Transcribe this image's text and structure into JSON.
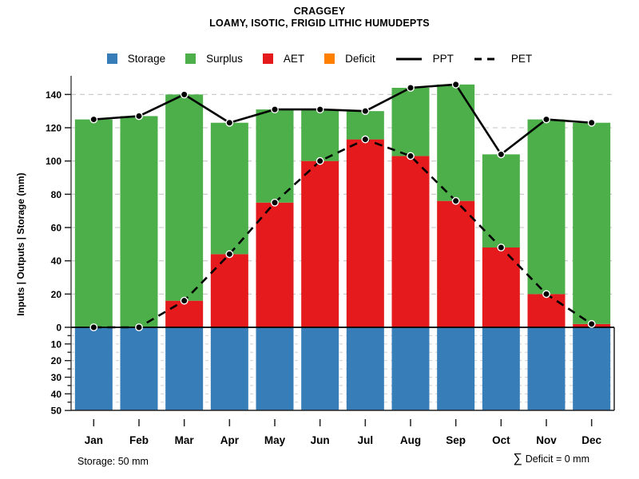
{
  "header": {
    "title": "CRAGGEY",
    "subtitle": "LOAMY, ISOTIC, FRIGID LITHIC HUMUDEPTS"
  },
  "legend": {
    "items": [
      {
        "label": "Storage",
        "kind": "swatch",
        "color": "#377eb8"
      },
      {
        "label": "Surplus",
        "kind": "swatch",
        "color": "#4daf4a"
      },
      {
        "label": "AET",
        "kind": "swatch",
        "color": "#e41a1c"
      },
      {
        "label": "Deficit",
        "kind": "swatch",
        "color": "#ff7f00"
      },
      {
        "label": "PPT",
        "kind": "line",
        "style": "solid",
        "color": "#000000"
      },
      {
        "label": "PET",
        "kind": "line",
        "style": "dashed",
        "color": "#000000"
      }
    ]
  },
  "footer": {
    "left": "Storage: 50 mm",
    "sigma": "∑",
    "right": "Deficit = 0 mm"
  },
  "chart_data": {
    "type": "bar",
    "title": "CRAGGEY",
    "subtitle": "LOAMY, ISOTIC, FRIGID LITHIC HUMUDEPTS",
    "ylabel": "Inputs | Outputs | Storage   (mm)",
    "categories": [
      "Jan",
      "Feb",
      "Mar",
      "Apr",
      "May",
      "Jun",
      "Jul",
      "Aug",
      "Sep",
      "Oct",
      "Nov",
      "Dec"
    ],
    "upper_axis": {
      "tick_interval": 20,
      "ticks": [
        0,
        20,
        40,
        60,
        80,
        100,
        120,
        140
      ],
      "max": 150,
      "grid": "dashed"
    },
    "lower_axis": {
      "tick_interval": 10,
      "minor_interval": 5,
      "ticks": [
        10,
        20,
        30,
        40,
        50
      ],
      "max": 50,
      "direction": "down",
      "grid": "dashed"
    },
    "series": [
      {
        "name": "Storage",
        "type": "bar-below-axis",
        "color": "#377eb8",
        "values": [
          50,
          50,
          50,
          50,
          50,
          50,
          50,
          50,
          50,
          50,
          50,
          50
        ]
      },
      {
        "name": "AET",
        "type": "bar",
        "color": "#e41a1c",
        "values": [
          0,
          0,
          16,
          44,
          75,
          100,
          113,
          103,
          76,
          48,
          20,
          2
        ]
      },
      {
        "name": "Surplus",
        "type": "bar",
        "stacked_on": "AET",
        "color": "#4daf4a",
        "values": [
          125,
          127,
          124,
          79,
          56,
          31,
          17,
          41,
          70,
          56,
          105,
          121
        ]
      },
      {
        "name": "Deficit",
        "type": "bar",
        "color": "#ff7f00",
        "values": [
          0,
          0,
          0,
          0,
          0,
          0,
          0,
          0,
          0,
          0,
          0,
          0
        ]
      },
      {
        "name": "PPT",
        "type": "line",
        "style": "solid",
        "color": "#000000",
        "values": [
          125,
          127,
          140,
          123,
          131,
          131,
          130,
          144,
          146,
          104,
          125,
          123
        ]
      },
      {
        "name": "PET",
        "type": "line",
        "style": "dashed",
        "color": "#000000",
        "values": [
          0,
          0,
          16,
          44,
          75,
          100,
          113,
          103,
          76,
          48,
          20,
          2
        ]
      }
    ],
    "annotations": {
      "storage_note": "Storage: 50 mm",
      "deficit_note": "∑ Deficit = 0 mm"
    },
    "legend_position": "top"
  }
}
